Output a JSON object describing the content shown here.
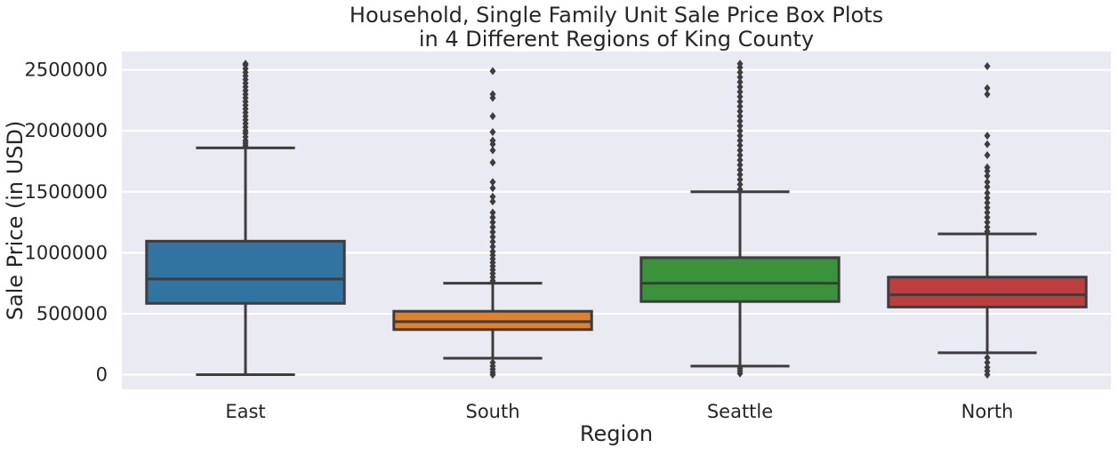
{
  "chart_data": {
    "type": "boxplot",
    "title": "Household, Single Family Unit Sale Price Box Plots",
    "subtitle": "in 4 Different Regions of King County",
    "xlabel": "Region",
    "ylabel": "Sale Price (in USD)",
    "ylim": [
      -120000,
      2650000
    ],
    "yticks": [
      0,
      500000,
      1000000,
      1500000,
      2000000,
      2500000
    ],
    "grid": true,
    "categories": [
      "East",
      "South",
      "Seattle",
      "North"
    ],
    "colors": [
      "#3274a1",
      "#e1812c",
      "#3a923a",
      "#c03d3e"
    ],
    "boxes": [
      {
        "name": "East",
        "whisker_low": 0,
        "q1": 585000,
        "median": 785000,
        "q3": 1095000,
        "whisker_high": 1860000,
        "outliers": [
          1880000,
          1900000,
          1920000,
          1950000,
          1980000,
          2000000,
          2030000,
          2060000,
          2090000,
          2120000,
          2150000,
          2180000,
          2210000,
          2240000,
          2270000,
          2300000,
          2330000,
          2360000,
          2390000,
          2420000,
          2450000,
          2480000,
          2510000,
          2540000,
          2550000
        ]
      },
      {
        "name": "South",
        "whisker_low": 135000,
        "q1": 370000,
        "median": 435000,
        "q3": 520000,
        "whisker_high": 750000,
        "outliers": [
          0,
          20000,
          45000,
          70000,
          100000,
          770000,
          800000,
          830000,
          860000,
          890000,
          920000,
          950000,
          980000,
          1010000,
          1050000,
          1090000,
          1130000,
          1170000,
          1210000,
          1250000,
          1290000,
          1330000,
          1420000,
          1460000,
          1530000,
          1580000,
          1740000,
          1840000,
          1890000,
          1920000,
          1990000,
          2120000,
          2270000,
          2300000,
          2490000
        ]
      },
      {
        "name": "Seattle",
        "whisker_low": 70000,
        "q1": 600000,
        "median": 750000,
        "q3": 960000,
        "whisker_high": 1500000,
        "outliers": [
          10000,
          30000,
          50000,
          1520000,
          1560000,
          1600000,
          1640000,
          1680000,
          1720000,
          1760000,
          1800000,
          1840000,
          1880000,
          1920000,
          1960000,
          2000000,
          2040000,
          2080000,
          2120000,
          2160000,
          2200000,
          2240000,
          2280000,
          2320000,
          2360000,
          2400000,
          2440000,
          2480000,
          2520000,
          2550000
        ]
      },
      {
        "name": "North",
        "whisker_low": 180000,
        "q1": 555000,
        "median": 655000,
        "q3": 800000,
        "whisker_high": 1155000,
        "outliers": [
          0,
          30000,
          60000,
          100000,
          140000,
          1175000,
          1210000,
          1250000,
          1290000,
          1330000,
          1370000,
          1410000,
          1450000,
          1490000,
          1540000,
          1580000,
          1630000,
          1670000,
          1700000,
          1800000,
          1890000,
          1960000,
          2300000,
          2350000,
          2530000
        ]
      }
    ]
  }
}
